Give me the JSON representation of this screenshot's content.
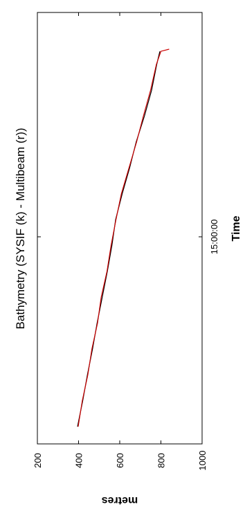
{
  "chart_data": {
    "type": "line",
    "title": "Bathymetry (SYSIF (k) - Multibeam (r))",
    "xlabel": "Time",
    "ylabel": "metres",
    "ylim": [
      200,
      1000
    ],
    "yticks": [
      200,
      400,
      600,
      800,
      1000
    ],
    "xticks": [
      {
        "label": "15:00:00",
        "frac": 0.48
      }
    ],
    "x_fraction_range": [
      0,
      1
    ],
    "grid": false,
    "rotated_clockwise_90": true,
    "series": [
      {
        "color": "#000000",
        "x": [
          0.04,
          0.1,
          0.16,
          0.22,
          0.28,
          0.34,
          0.4,
          0.46,
          0.52,
          0.58,
          0.64,
          0.7,
          0.76,
          0.82,
          0.88,
          0.91
        ],
        "values": [
          395,
          420,
          443,
          468,
          490,
          515,
          540,
          562,
          580,
          612,
          648,
          680,
          720,
          755,
          780,
          795
        ]
      },
      {
        "color": "#cc0000",
        "x": [
          0.04,
          0.1,
          0.16,
          0.22,
          0.28,
          0.34,
          0.4,
          0.46,
          0.52,
          0.58,
          0.64,
          0.7,
          0.76,
          0.82,
          0.88,
          0.91,
          0.915
        ],
        "values": [
          398,
          418,
          445,
          465,
          492,
          510,
          538,
          558,
          582,
          608,
          645,
          682,
          715,
          750,
          778,
          800,
          840
        ]
      }
    ]
  }
}
